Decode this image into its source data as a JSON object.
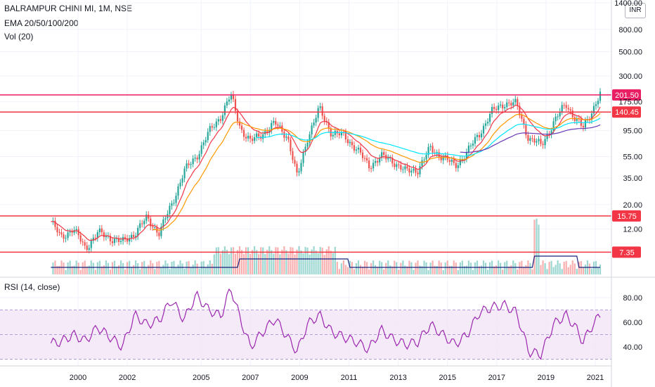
{
  "legend": {
    "symbol": "BALRAMPUR CHINI MI, 1M, NSE",
    "ema": "EMA 20/50/100/200",
    "vol": "Vol (20)",
    "rsi": "RSI (14, close)"
  },
  "unit_label": "INR",
  "colors": {
    "up": "#26a69a",
    "down": "#ef5350",
    "hline": "#e91e63",
    "hline_red": "#f23645",
    "ema20": "#f23645",
    "ema50": "#ff9800",
    "ema100": "#00e5ff",
    "ema200": "#673ab7",
    "vol_ma": "#1a237e",
    "rsi": "#9c27b0",
    "rsi_band": "#f3e5f5"
  },
  "chart_data": {
    "type": "candlestick",
    "scale": "log",
    "price_axis": {
      "ticks": [
        "1400.00",
        "800.00",
        "500.00",
        "300.00",
        "175.00",
        "95.00",
        "55.00",
        "35.00",
        "20.00",
        "12.00"
      ],
      "tick_values": [
        1400,
        800,
        500,
        300,
        175,
        95,
        55,
        35,
        20,
        12
      ]
    },
    "time_axis": {
      "ticks": [
        "2000",
        "2002",
        "2005",
        "2007",
        "2009",
        "2011",
        "2013",
        "2015",
        "2017",
        "2019",
        "2021"
      ],
      "tick_years": [
        2000,
        2002,
        2005,
        2007,
        2009,
        2011,
        2013,
        2015,
        2017,
        2019,
        2021
      ]
    },
    "horizontal_levels": [
      {
        "value": 201.5,
        "label": "201.50",
        "color": "#e91e63"
      },
      {
        "value": 140.45,
        "label": "140.45",
        "color": "#f23645"
      },
      {
        "value": 15.75,
        "label": "15.75",
        "color": "#f23645"
      },
      {
        "value": 7.35,
        "label": "7.35",
        "color": "#f23645"
      }
    ],
    "price_series": {
      "x_years": [
        1998.9,
        1999.3,
        1999.8,
        2000.3,
        2000.8,
        2001.3,
        2001.8,
        2002.3,
        2002.8,
        2003.3,
        2003.8,
        2004.3,
        2004.8,
        2005.3,
        2005.8,
        2006.2,
        2006.6,
        2007.0,
        2007.5,
        2008.0,
        2008.5,
        2008.9,
        2009.3,
        2009.8,
        2010.3,
        2010.8,
        2011.3,
        2011.8,
        2012.3,
        2012.8,
        2013.3,
        2013.8,
        2014.3,
        2014.8,
        2015.3,
        2015.8,
        2016.3,
        2016.8,
        2017.3,
        2017.8,
        2018.3,
        2018.8,
        2019.3,
        2019.8,
        2020.2,
        2020.5,
        2020.9,
        2021.2
      ],
      "close": [
        14,
        10,
        12,
        8,
        11,
        10,
        9,
        11,
        15,
        11,
        20,
        40,
        55,
        90,
        130,
        200,
        100,
        75,
        90,
        110,
        85,
        35,
        80,
        150,
        90,
        85,
        65,
        45,
        55,
        50,
        40,
        42,
        65,
        55,
        45,
        60,
        90,
        140,
        170,
        165,
        80,
        70,
        110,
        170,
        120,
        100,
        150,
        201.5
      ]
    },
    "rsi_axis": {
      "ticks": [
        "80.00",
        "60.00",
        "40.00"
      ],
      "tick_values": [
        80,
        60,
        40
      ],
      "band": [
        30,
        70
      ]
    },
    "rsi_series": {
      "x_years": [
        1998.9,
        1999.3,
        1999.8,
        2000.3,
        2000.8,
        2001.3,
        2001.8,
        2002.3,
        2002.8,
        2003.3,
        2003.8,
        2004.3,
        2004.8,
        2005.3,
        2005.8,
        2006.2,
        2006.6,
        2007.0,
        2007.5,
        2008.0,
        2008.5,
        2008.9,
        2009.3,
        2009.8,
        2010.3,
        2010.8,
        2011.3,
        2011.8,
        2012.3,
        2012.8,
        2013.3,
        2013.8,
        2014.3,
        2014.8,
        2015.3,
        2015.8,
        2016.3,
        2016.8,
        2017.3,
        2017.8,
        2018.3,
        2018.8,
        2019.3,
        2019.8,
        2020.2,
        2020.5,
        2020.9,
        2021.2
      ],
      "values": [
        43,
        44,
        50,
        45,
        56,
        48,
        40,
        66,
        58,
        62,
        78,
        62,
        82,
        70,
        65,
        88,
        62,
        40,
        52,
        63,
        48,
        36,
        58,
        66,
        52,
        48,
        44,
        38,
        54,
        46,
        42,
        44,
        58,
        50,
        42,
        50,
        68,
        72,
        74,
        68,
        36,
        34,
        58,
        66,
        56,
        44,
        58,
        66
      ]
    }
  }
}
